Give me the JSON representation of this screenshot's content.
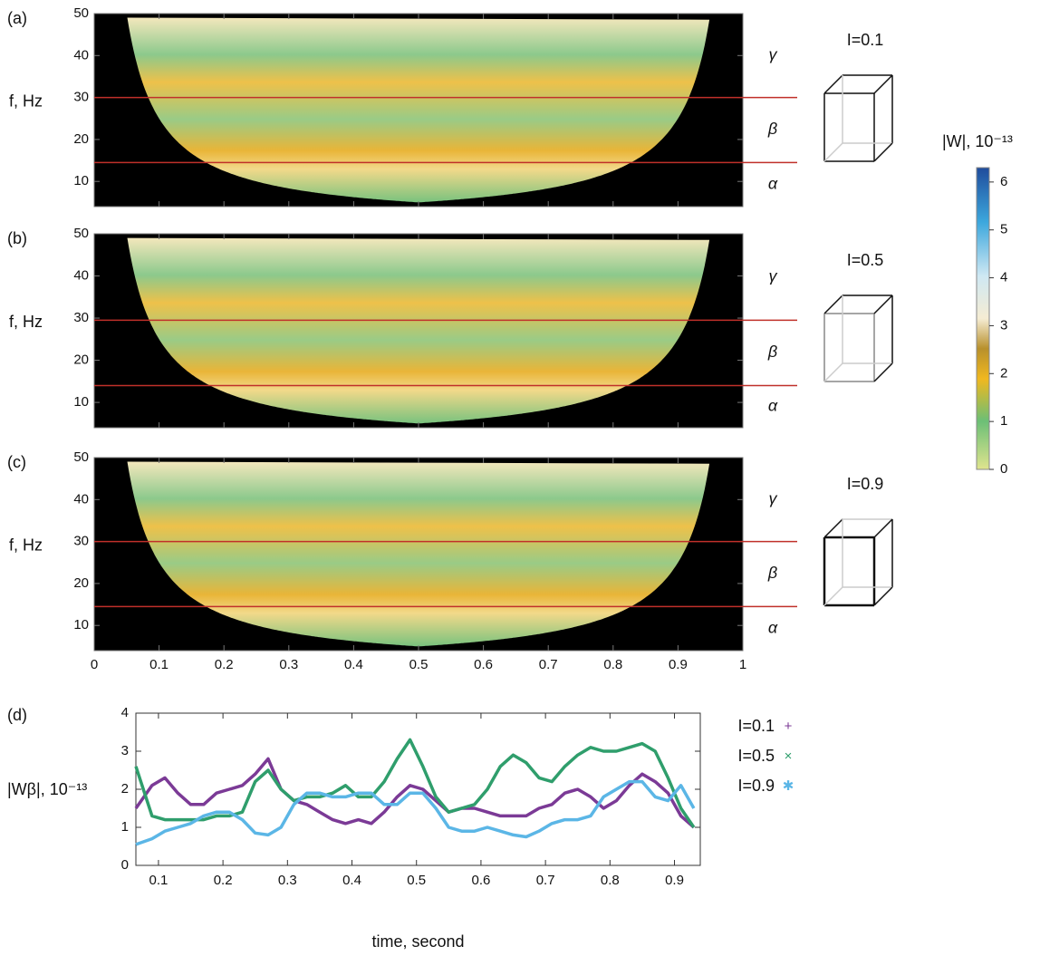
{
  "chart_data": [
    {
      "type": "heatmap",
      "label": "(a)",
      "ylabel": "f, Hz",
      "xlim": [
        0,
        1
      ],
      "ylim": [
        4,
        50
      ],
      "yticks": [
        10,
        20,
        30,
        40,
        50
      ],
      "band_lines": [
        30,
        14.5
      ],
      "band_labels": [
        "γ",
        "β",
        "α"
      ],
      "line_color": "#c0302a",
      "cube_label": "I=0.1"
    },
    {
      "type": "heatmap",
      "label": "(b)",
      "ylabel": "f, Hz",
      "xlim": [
        0,
        1
      ],
      "ylim": [
        4,
        50
      ],
      "yticks": [
        10,
        20,
        30,
        40,
        50
      ],
      "band_lines": [
        29.5,
        14
      ],
      "band_labels": [
        "γ",
        "β",
        "α"
      ],
      "line_color": "#c0302a",
      "cube_label": "I=0.5"
    },
    {
      "type": "heatmap",
      "label": "(c)",
      "ylabel": "f, Hz",
      "xlim": [
        0,
        1
      ],
      "ylim": [
        4,
        50
      ],
      "yticks": [
        10,
        20,
        30,
        40,
        50
      ],
      "xticks": [
        0,
        0.1,
        0.2,
        0.3,
        0.4,
        0.5,
        0.6,
        0.7,
        0.8,
        0.9,
        1
      ],
      "band_lines": [
        30,
        14.5
      ],
      "band_labels": [
        "γ",
        "β",
        "α"
      ],
      "line_color": "#c0302a",
      "cube_label": "I=0.9"
    },
    {
      "type": "colorbar",
      "title": "|W|, 10⁻¹³",
      "ylim": [
        0,
        6.3
      ],
      "yticks": [
        0,
        1,
        2,
        3,
        4,
        5,
        6
      ]
    },
    {
      "type": "line",
      "label": "(d)",
      "xlabel": "time, second",
      "ylabel": "|Wβ|, 10⁻¹³",
      "xlim": [
        0.065,
        0.94
      ],
      "ylim": [
        0,
        4
      ],
      "xticks": [
        0.1,
        0.2,
        0.3,
        0.4,
        0.5,
        0.6,
        0.7,
        0.8,
        0.9
      ],
      "yticks": [
        0,
        1,
        2,
        3,
        4
      ],
      "x": [
        0.065,
        0.09,
        0.11,
        0.13,
        0.15,
        0.17,
        0.19,
        0.21,
        0.23,
        0.25,
        0.27,
        0.29,
        0.31,
        0.33,
        0.35,
        0.37,
        0.39,
        0.41,
        0.43,
        0.45,
        0.47,
        0.49,
        0.51,
        0.53,
        0.55,
        0.57,
        0.59,
        0.61,
        0.63,
        0.65,
        0.67,
        0.69,
        0.71,
        0.73,
        0.75,
        0.77,
        0.79,
        0.81,
        0.83,
        0.85,
        0.87,
        0.89,
        0.91,
        0.93
      ],
      "series": [
        {
          "name": "I=0.1",
          "color": "#7b3a96",
          "values": [
            1.5,
            2.1,
            2.3,
            1.9,
            1.6,
            1.6,
            1.9,
            2.0,
            2.1,
            2.4,
            2.8,
            2.0,
            1.7,
            1.6,
            1.4,
            1.2,
            1.1,
            1.2,
            1.1,
            1.4,
            1.8,
            2.1,
            2.0,
            1.7,
            1.4,
            1.5,
            1.5,
            1.4,
            1.3,
            1.3,
            1.3,
            1.5,
            1.6,
            1.9,
            2.0,
            1.8,
            1.5,
            1.7,
            2.1,
            2.4,
            2.2,
            1.9,
            1.3,
            1.0
          ]
        },
        {
          "name": "I=0.5",
          "color": "#2f9e6c",
          "values": [
            2.6,
            1.3,
            1.2,
            1.2,
            1.2,
            1.2,
            1.3,
            1.3,
            1.4,
            2.2,
            2.5,
            2.0,
            1.7,
            1.8,
            1.8,
            1.9,
            2.1,
            1.8,
            1.8,
            2.2,
            2.8,
            3.3,
            2.6,
            1.8,
            1.4,
            1.5,
            1.6,
            2.0,
            2.6,
            2.9,
            2.7,
            2.3,
            2.2,
            2.6,
            2.9,
            3.1,
            3.0,
            3.0,
            3.1,
            3.2,
            3.0,
            2.3,
            1.5,
            1.0
          ]
        },
        {
          "name": "I=0.9",
          "color": "#5bb6e6",
          "values": [
            0.55,
            0.7,
            0.9,
            1.0,
            1.1,
            1.3,
            1.4,
            1.4,
            1.2,
            0.85,
            0.8,
            1.0,
            1.6,
            1.9,
            1.9,
            1.8,
            1.8,
            1.9,
            1.9,
            1.6,
            1.6,
            1.9,
            1.9,
            1.5,
            1.0,
            0.9,
            0.9,
            1.0,
            0.9,
            0.8,
            0.75,
            0.9,
            1.1,
            1.2,
            1.2,
            1.3,
            1.8,
            2.0,
            2.2,
            2.2,
            1.8,
            1.7,
            2.1,
            1.5
          ]
        }
      ]
    }
  ]
}
